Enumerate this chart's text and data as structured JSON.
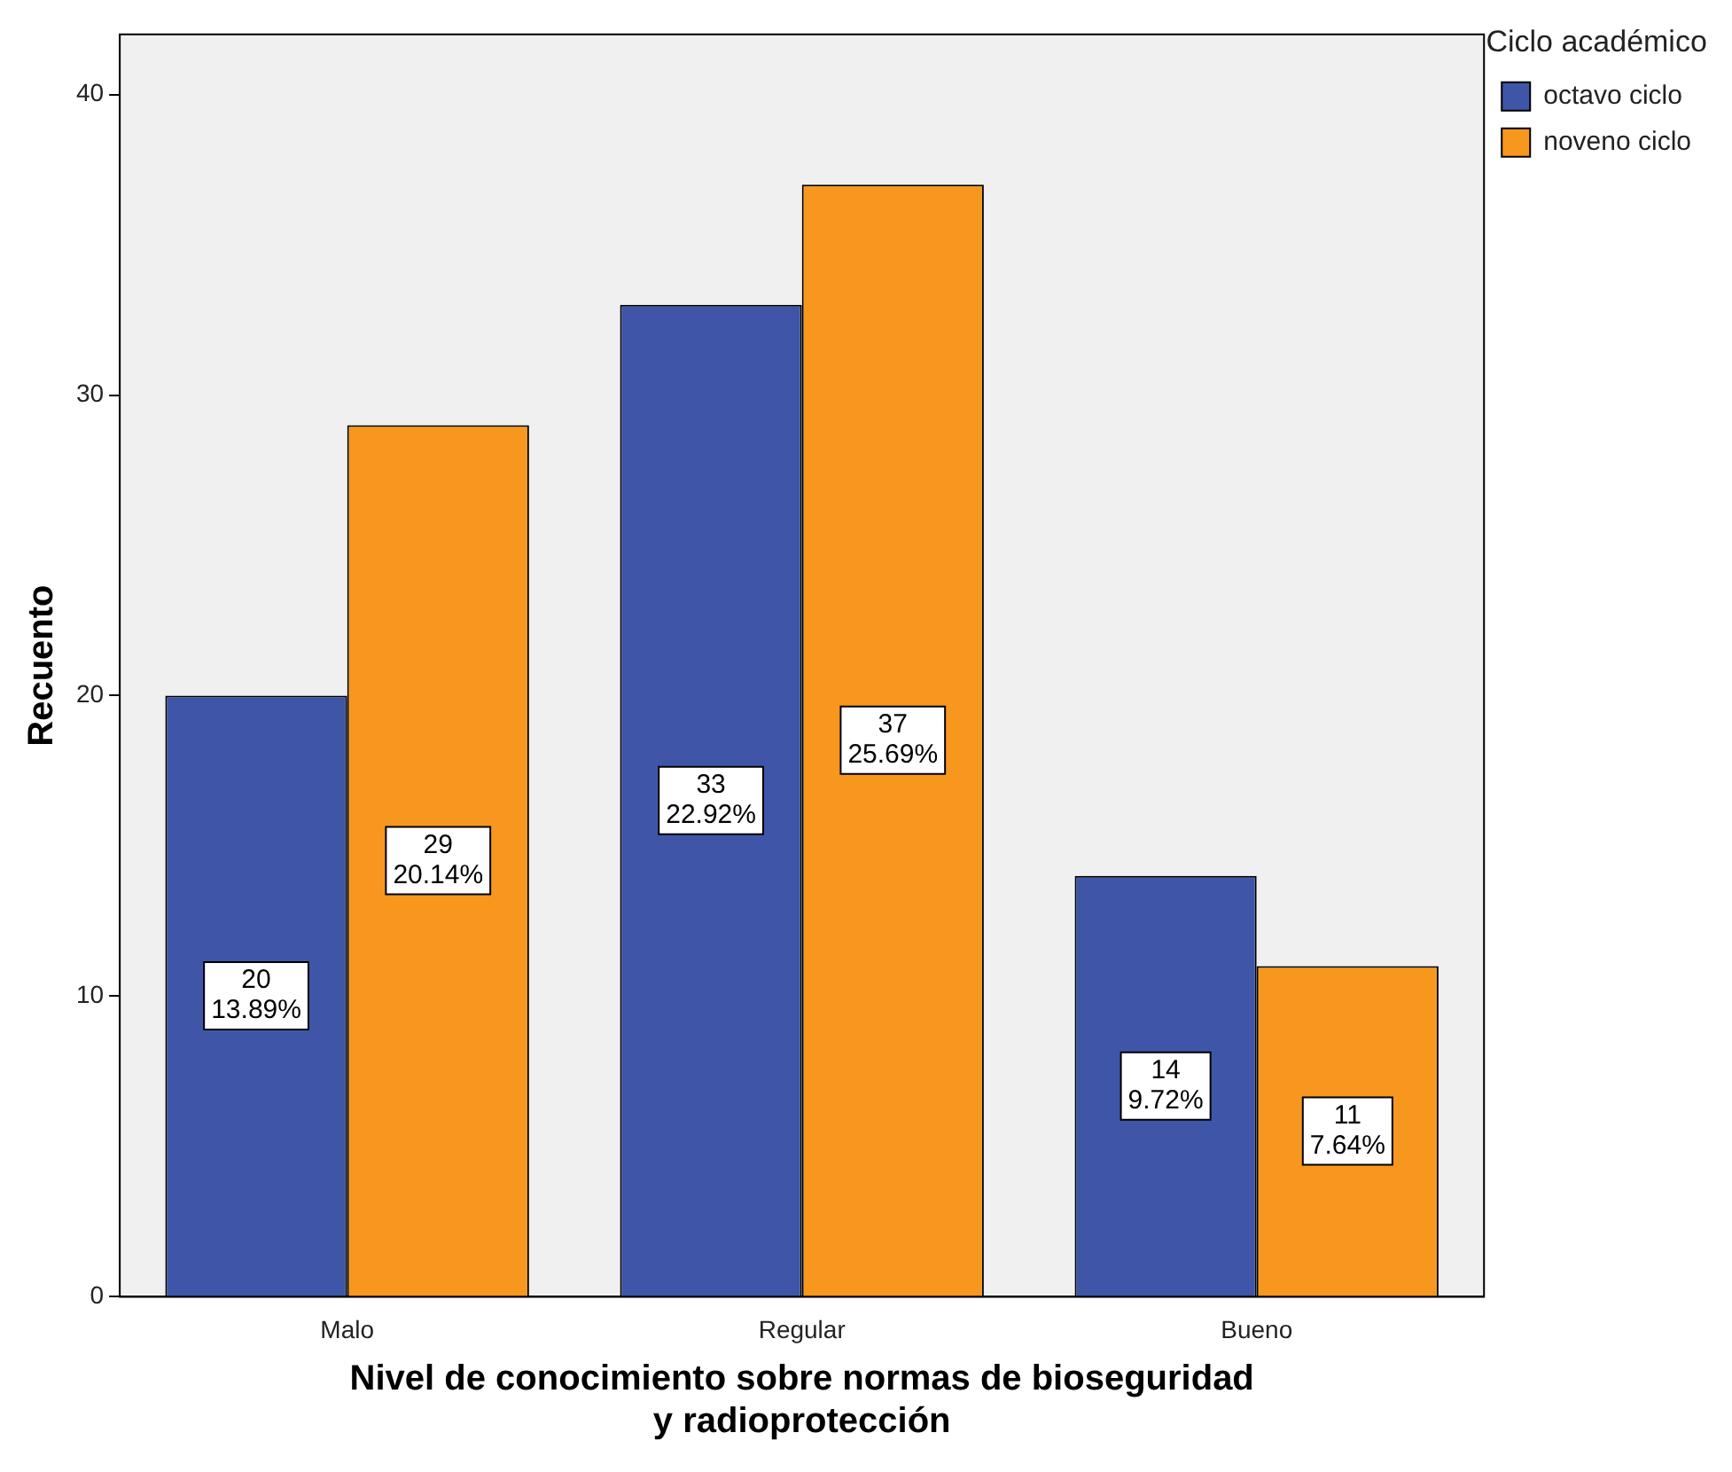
{
  "chart_data": {
    "type": "bar",
    "xlabel": "Nivel de conocimiento sobre normas de bioseguridad\ny radioprotección",
    "ylabel": "Recuento",
    "legend_title": "Ciclo académico",
    "legend": "right",
    "categories": [
      "Malo",
      "Regular",
      "Bueno"
    ],
    "series": [
      {
        "name": "octavo ciclo",
        "color": "#3f56a8",
        "values": [
          20,
          33,
          14
        ],
        "value_labels": [
          "20\n13.89%",
          "33\n22.92%",
          "14\n9.72%"
        ]
      },
      {
        "name": "noveno ciclo",
        "color": "#f7971e",
        "values": [
          29,
          37,
          11
        ],
        "value_labels": [
          "29\n20.14%",
          "37\n25.69%",
          "11\n7.64%"
        ]
      }
    ],
    "ylim": [
      0,
      42
    ],
    "yticks": [
      0,
      10,
      20,
      30,
      40
    ]
  }
}
